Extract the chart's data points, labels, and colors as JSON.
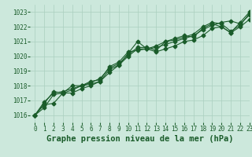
{
  "title": "Graphe pression niveau de la mer (hPa)",
  "background_color": "#cce8dc",
  "grid_color": "#aacfbf",
  "line_color": "#1a5c2a",
  "xlim": [
    -0.5,
    23
  ],
  "ylim": [
    1015.5,
    1023.5
  ],
  "yticks": [
    1016,
    1017,
    1018,
    1019,
    1020,
    1021,
    1022,
    1023
  ],
  "xticks": [
    0,
    1,
    2,
    3,
    4,
    5,
    6,
    7,
    8,
    9,
    10,
    11,
    12,
    13,
    14,
    15,
    16,
    17,
    18,
    19,
    20,
    21,
    22,
    23
  ],
  "series": [
    [
      1016.0,
      1016.7,
      1016.8,
      1017.5,
      1017.5,
      1017.8,
      1018.0,
      1018.3,
      1018.9,
      1019.4,
      1020.2,
      1021.0,
      1020.5,
      1020.3,
      1020.5,
      1020.7,
      1021.0,
      1021.1,
      1021.4,
      1021.9,
      1022.0,
      1021.6,
      1022.0,
      1022.5
    ],
    [
      1016.0,
      1016.5,
      1017.4,
      1017.5,
      1017.7,
      1018.0,
      1018.1,
      1018.3,
      1019.1,
      1019.4,
      1020.0,
      1020.5,
      1020.5,
      1020.6,
      1020.8,
      1021.0,
      1021.2,
      1021.4,
      1021.8,
      1022.1,
      1022.3,
      1022.4,
      1022.2,
      1022.8
    ],
    [
      1016.0,
      1016.8,
      1017.6,
      1017.5,
      1018.0,
      1018.0,
      1018.2,
      1018.5,
      1019.2,
      1019.5,
      1020.1,
      1020.6,
      1020.6,
      1020.4,
      1021.0,
      1021.2,
      1021.4,
      1021.3,
      1021.9,
      1022.2,
      1022.0,
      1021.6,
      1022.3,
      1023.0
    ],
    [
      1016.0,
      1016.9,
      1017.5,
      1017.6,
      1017.8,
      1018.0,
      1018.3,
      1018.4,
      1019.3,
      1019.6,
      1020.3,
      1020.4,
      1020.5,
      1020.7,
      1021.0,
      1021.1,
      1021.3,
      1021.5,
      1022.0,
      1022.3,
      1022.2,
      1021.7,
      1022.1,
      1022.9
    ]
  ],
  "marker": "D",
  "marker_size": 2.5,
  "line_width": 0.8,
  "title_fontsize": 7.5,
  "tick_fontsize": 5.5
}
